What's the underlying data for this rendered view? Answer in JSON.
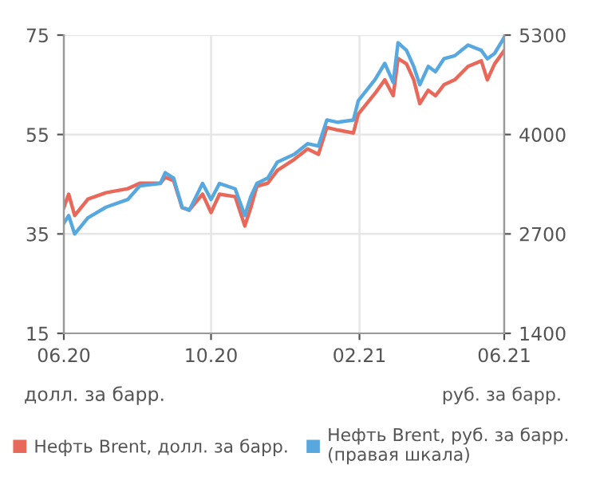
{
  "chart_data": {
    "type": "line",
    "ylabel": "долл. за барр.",
    "annotations": [
      "руб. за барр."
    ],
    "xlim": [
      "2020-06-01",
      "2021-06-01"
    ],
    "xticks": [
      {
        "value": "2020-06-01",
        "label": "06.20"
      },
      {
        "value": "2020-10-01",
        "label": "10.20"
      },
      {
        "value": "2021-02-01",
        "label": "02.21"
      },
      {
        "value": "2021-06-01",
        "label": "06.21"
      }
    ],
    "ylim": [
      15,
      75
    ],
    "yticks": [
      15,
      35,
      55,
      75
    ],
    "y2lim": [
      1400,
      5300
    ],
    "y2ticks": [
      1400,
      2700,
      4000,
      5300
    ],
    "grid": true,
    "legend": "bottom",
    "marker": "none",
    "line_style": "solid",
    "x": [
      "2020-06-01",
      "2020-06-05",
      "2020-06-10",
      "2020-06-21",
      "2020-07-06",
      "2020-07-24",
      "2020-08-03",
      "2020-08-20",
      "2020-08-24",
      "2020-08-31",
      "2020-09-07",
      "2020-09-13",
      "2020-09-24",
      "2020-10-01",
      "2020-10-08",
      "2020-10-21",
      "2020-10-29",
      "2020-11-03",
      "2020-11-08",
      "2020-11-17",
      "2020-11-25",
      "2020-12-09",
      "2020-12-20",
      "2020-12-29",
      "2021-01-05",
      "2021-01-14",
      "2021-01-27",
      "2021-01-31",
      "2021-02-14",
      "2021-02-22",
      "2021-03-01",
      "2021-03-05",
      "2021-03-12",
      "2021-03-18",
      "2021-03-23",
      "2021-03-30",
      "2021-04-05",
      "2021-04-12",
      "2021-04-21",
      "2021-05-02",
      "2021-05-13",
      "2021-05-18",
      "2021-05-24",
      "2021-06-01"
    ],
    "series": [
      {
        "name": "Нефть Brent, долл. за барр.",
        "color": "#e8685a",
        "values": [
          40.3,
          43.0,
          38.7,
          42.0,
          43.3,
          44.1,
          45.2,
          45.2,
          46.4,
          45.7,
          40.3,
          39.8,
          43.0,
          39.3,
          43.0,
          42.5,
          36.6,
          40.3,
          44.6,
          45.2,
          47.8,
          50.0,
          52.1,
          51.0,
          56.4,
          55.9,
          55.3,
          59.1,
          63.3,
          66.0,
          62.8,
          70.3,
          69.2,
          66.0,
          61.2,
          63.9,
          62.8,
          65.0,
          66.0,
          68.7,
          69.8,
          66.0,
          69.2,
          71.9
        ]
      },
      {
        "name": "Нефть Brent, руб. за барр.\n(правая шкала)",
        "color": "#58a8e0",
        "axis": "y2",
        "values": [
          2840,
          2940,
          2700,
          2910,
          3050,
          3150,
          3330,
          3360,
          3500,
          3430,
          3050,
          3010,
          3360,
          3150,
          3360,
          3290,
          2940,
          3190,
          3360,
          3430,
          3640,
          3740,
          3880,
          3850,
          4190,
          4160,
          4190,
          4440,
          4720,
          4930,
          4680,
          5200,
          5100,
          4890,
          4650,
          4890,
          4820,
          4990,
          5030,
          5170,
          5100,
          4990,
          5060,
          5270
        ]
      }
    ]
  }
}
